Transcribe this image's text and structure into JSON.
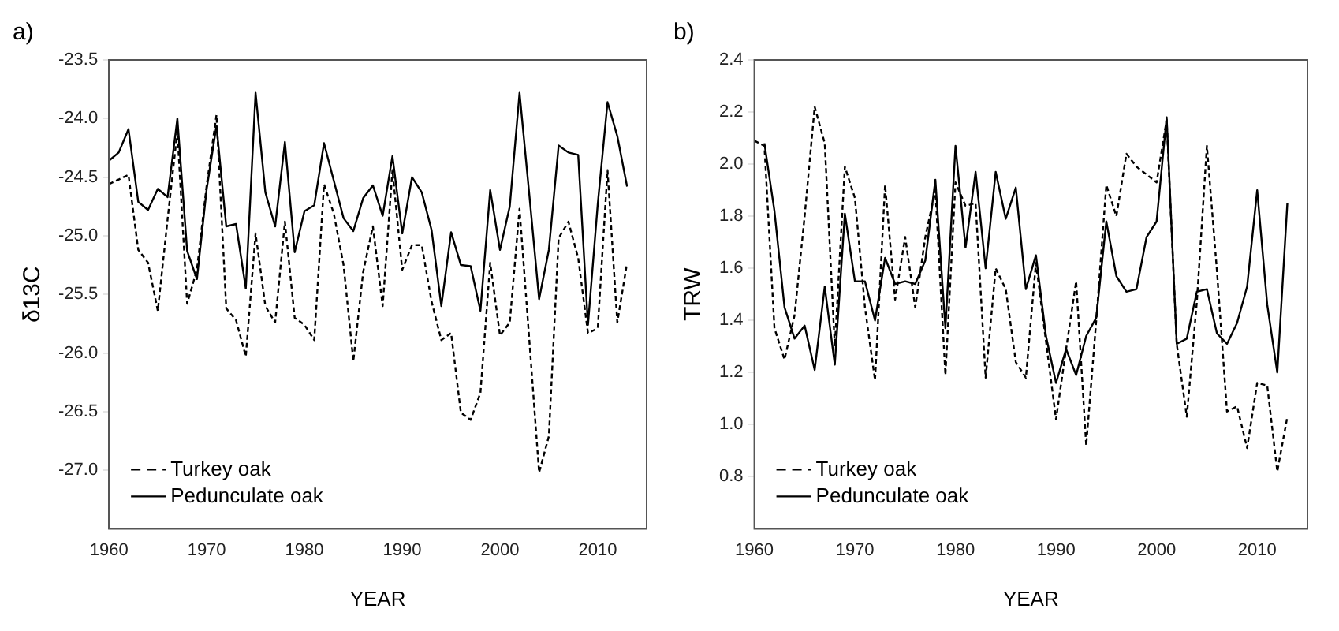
{
  "chart_data": [
    {
      "type": "line",
      "title": "a)",
      "xlabel": "YEAR",
      "ylabel": "δ13C",
      "x": [
        1960,
        1961,
        1962,
        1963,
        1964,
        1965,
        1966,
        1967,
        1968,
        1969,
        1970,
        1971,
        1972,
        1973,
        1974,
        1975,
        1976,
        1977,
        1978,
        1979,
        1980,
        1981,
        1982,
        1983,
        1984,
        1985,
        1986,
        1987,
        1988,
        1989,
        1990,
        1991,
        1992,
        1993,
        1994,
        1995,
        1996,
        1997,
        1998,
        1999,
        2000,
        2001,
        2002,
        2003,
        2004,
        2005,
        2006,
        2007,
        2008,
        2009,
        2010,
        2011,
        2012,
        2013
      ],
      "series": [
        {
          "name": "Turkey oak",
          "color": "#000000",
          "line_style": "dashed",
          "values": [
            -24.56,
            -24.52,
            -24.48,
            -25.12,
            -25.23,
            -25.64,
            -24.86,
            -24.11,
            -25.58,
            -25.29,
            -24.57,
            -23.97,
            -25.62,
            -25.72,
            -26.03,
            -24.98,
            -25.6,
            -25.74,
            -24.88,
            -25.7,
            -25.76,
            -25.89,
            -24.56,
            -24.81,
            -25.25,
            -26.07,
            -25.31,
            -24.92,
            -25.6,
            -24.44,
            -25.29,
            -25.08,
            -25.08,
            -25.56,
            -25.89,
            -25.83,
            -26.51,
            -26.57,
            -26.34,
            -25.23,
            -25.85,
            -25.74,
            -24.77,
            -25.89,
            -27.02,
            -26.71,
            -25.02,
            -24.88,
            -25.19,
            -25.83,
            -25.79,
            -24.44,
            -25.74,
            -25.23
          ]
        },
        {
          "name": "Pedunculate oak",
          "color": "#000000",
          "line_style": "solid",
          "values": [
            -24.36,
            -24.29,
            -24.09,
            -24.71,
            -24.78,
            -24.6,
            -24.67,
            -24.0,
            -25.13,
            -25.37,
            -24.6,
            -24.06,
            -24.92,
            -24.9,
            -25.45,
            -23.78,
            -24.63,
            -24.92,
            -24.2,
            -25.14,
            -24.79,
            -24.74,
            -24.21,
            -24.53,
            -24.85,
            -24.96,
            -24.68,
            -24.57,
            -24.83,
            -24.32,
            -24.98,
            -24.5,
            -24.63,
            -24.95,
            -25.6,
            -24.97,
            -25.25,
            -25.26,
            -25.64,
            -24.61,
            -25.12,
            -24.75,
            -23.78,
            -24.65,
            -25.54,
            -25.12,
            -24.23,
            -24.29,
            -24.31,
            -25.76,
            -24.73,
            -23.86,
            -24.15,
            -24.58
          ]
        }
      ],
      "xlim": [
        1960,
        2015
      ],
      "xticks": [
        1960,
        1970,
        1980,
        1990,
        2000,
        2010
      ],
      "ylim": [
        -27.5,
        -23.5
      ],
      "yticks": [
        {
          "value": -23.5,
          "label": "-23.5"
        },
        {
          "value": -24,
          "label": "-24.0"
        },
        {
          "value": -24.5,
          "label": "-24.5"
        },
        {
          "value": -25,
          "label": "-25.0"
        },
        {
          "value": -25.5,
          "label": "-25.5"
        },
        {
          "value": -26,
          "label": "-26.0"
        },
        {
          "value": -26.5,
          "label": "-26.5"
        },
        {
          "value": -27,
          "label": "-27.0"
        }
      ],
      "legend": "bottom left"
    },
    {
      "type": "line",
      "title": "b)",
      "xlabel": "YEAR",
      "ylabel": "TRW",
      "x": [
        1960,
        1961,
        1962,
        1963,
        1964,
        1965,
        1966,
        1967,
        1968,
        1969,
        1970,
        1971,
        1972,
        1973,
        1974,
        1975,
        1976,
        1977,
        1978,
        1979,
        1980,
        1981,
        1982,
        1983,
        1984,
        1985,
        1986,
        1987,
        1988,
        1989,
        1990,
        1991,
        1992,
        1993,
        1994,
        1995,
        1996,
        1997,
        1998,
        1999,
        2000,
        2001,
        2002,
        2003,
        2004,
        2005,
        2006,
        2007,
        2008,
        2009,
        2010,
        2011,
        2012,
        2013
      ],
      "series": [
        {
          "name": "Turkey oak",
          "color": "#000000",
          "line_style": "dashed",
          "values": [
            2.09,
            2.07,
            1.37,
            1.25,
            1.42,
            1.8,
            2.22,
            2.08,
            1.3,
            1.99,
            1.87,
            1.45,
            1.17,
            1.92,
            1.48,
            1.72,
            1.45,
            1.72,
            1.9,
            1.19,
            1.93,
            1.84,
            1.85,
            1.18,
            1.6,
            1.52,
            1.24,
            1.18,
            1.62,
            1.32,
            1.02,
            1.29,
            1.55,
            0.92,
            1.4,
            1.92,
            1.8,
            2.04,
            1.99,
            1.96,
            1.93,
            2.17,
            1.31,
            1.03,
            1.47,
            2.07,
            1.59,
            1.05,
            1.07,
            0.91,
            1.16,
            1.15,
            0.82,
            1.03
          ]
        },
        {
          "name": "Pedunculate oak",
          "color": "#000000",
          "line_style": "solid",
          "x": [
            1961,
            1962,
            1963,
            1964,
            1965,
            1966,
            1967,
            1968,
            1969,
            1970,
            1971,
            1972,
            1973,
            1974,
            1975,
            1976,
            1977,
            1978,
            1979,
            1980,
            1981,
            1982,
            1983,
            1984,
            1985,
            1986,
            1987,
            1988,
            1989,
            1990,
            1991,
            1992,
            1993,
            1994,
            1995,
            1996,
            1997,
            1998,
            1999,
            2000,
            2001,
            2002,
            2003,
            2004,
            2005,
            2006,
            2007,
            2008,
            2009,
            2010,
            2011,
            2012,
            2013
          ],
          "values": [
            2.08,
            1.82,
            1.45,
            1.33,
            1.38,
            1.21,
            1.53,
            1.23,
            1.81,
            1.55,
            1.55,
            1.4,
            1.64,
            1.54,
            1.55,
            1.54,
            1.63,
            1.94,
            1.37,
            2.07,
            1.68,
            1.97,
            1.6,
            1.97,
            1.79,
            1.91,
            1.52,
            1.65,
            1.34,
            1.16,
            1.29,
            1.19,
            1.34,
            1.41,
            1.78,
            1.57,
            1.51,
            1.52,
            1.72,
            1.78,
            2.18,
            1.31,
            1.33,
            1.51,
            1.52,
            1.35,
            1.31,
            1.39,
            1.53,
            1.9,
            1.46,
            1.2,
            1.85
          ]
        }
      ],
      "xlim": [
        1960,
        2015
      ],
      "xticks": [
        1960,
        1970,
        1980,
        1990,
        2000,
        2010
      ],
      "ylim": [
        0.6,
        2.4
      ],
      "yticks": [
        {
          "value": 0.8,
          "label": "0.8"
        },
        {
          "value": 1,
          "label": "1.0"
        },
        {
          "value": 1.2,
          "label": "1.2"
        },
        {
          "value": 1.4,
          "label": "1.4"
        },
        {
          "value": 1.6,
          "label": "1.6"
        },
        {
          "value": 1.8,
          "label": "1.8"
        },
        {
          "value": 2,
          "label": "2.0"
        },
        {
          "value": 2.2,
          "label": "2.2"
        },
        {
          "value": 2.4,
          "label": "2.4"
        }
      ],
      "legend": "bottom left"
    }
  ]
}
